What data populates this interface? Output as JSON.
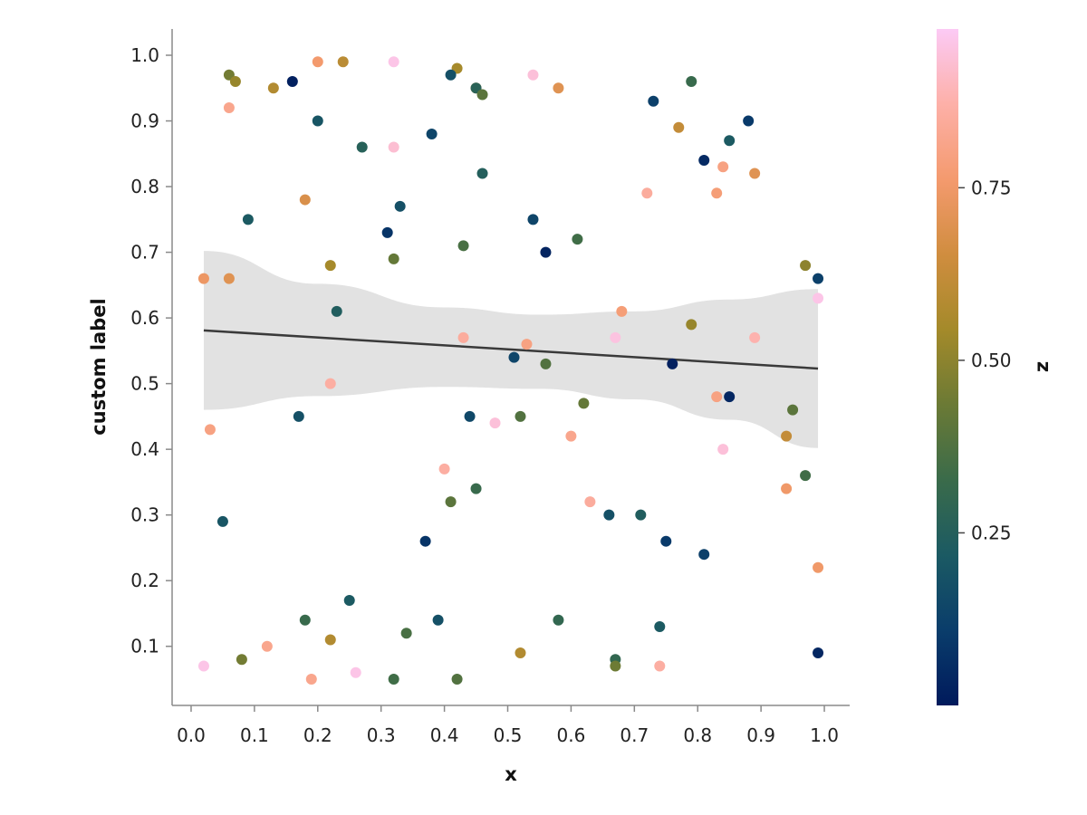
{
  "chart_data": {
    "type": "scatter",
    "xlabel": "x",
    "ylabel": "custom label",
    "xlim": [
      -0.03,
      1.04
    ],
    "ylim": [
      0.01,
      1.04
    ],
    "x_ticks": [
      "0.0",
      "0.1",
      "0.2",
      "0.3",
      "0.4",
      "0.5",
      "0.6",
      "0.7",
      "0.8",
      "0.9",
      "1.0"
    ],
    "y_ticks": [
      "0.1",
      "0.2",
      "0.3",
      "0.4",
      "0.5",
      "0.6",
      "0.7",
      "0.8",
      "0.9",
      "1.0"
    ],
    "grid": false,
    "regression": {
      "x0": 0.02,
      "y0": 0.581,
      "x1": 0.99,
      "y1": 0.523,
      "band": [
        {
          "x": 0.02,
          "lo": 0.46,
          "hi": 0.702
        },
        {
          "x": 0.2,
          "lo": 0.481,
          "hi": 0.652
        },
        {
          "x": 0.4,
          "lo": 0.495,
          "hi": 0.616
        },
        {
          "x": 0.55,
          "lo": 0.492,
          "hi": 0.605
        },
        {
          "x": 0.7,
          "lo": 0.476,
          "hi": 0.61
        },
        {
          "x": 0.85,
          "lo": 0.445,
          "hi": 0.628
        },
        {
          "x": 0.99,
          "lo": 0.402,
          "hi": 0.644
        }
      ],
      "line_color": "#3a3a3a",
      "band_color": "#e2e2e2"
    },
    "colorbar": {
      "label": "z",
      "ticks": [
        "0.25",
        "0.50",
        "0.75"
      ],
      "tick_values": [
        0.25,
        0.5,
        0.75
      ],
      "zlim": [
        0.0,
        0.98
      ],
      "colors": [
        "#001a5c",
        "#0a3d6b",
        "#1b5a63",
        "#3a6b4a",
        "#6b7a35",
        "#a48a2a",
        "#d08d3f",
        "#f49a6e",
        "#fdb0a8",
        "#fccaf5"
      ]
    },
    "points": [
      {
        "x": 0.06,
        "y": 0.97,
        "z": 0.45
      },
      {
        "x": 0.07,
        "y": 0.96,
        "z": 0.52
      },
      {
        "x": 0.06,
        "y": 0.92,
        "z": 0.82
      },
      {
        "x": 0.13,
        "y": 0.95,
        "z": 0.58
      },
      {
        "x": 0.16,
        "y": 0.96,
        "z": 0.02
      },
      {
        "x": 0.2,
        "y": 0.99,
        "z": 0.76
      },
      {
        "x": 0.24,
        "y": 0.99,
        "z": 0.6
      },
      {
        "x": 0.32,
        "y": 0.99,
        "z": 0.96
      },
      {
        "x": 0.2,
        "y": 0.9,
        "z": 0.2
      },
      {
        "x": 0.27,
        "y": 0.86,
        "z": 0.26
      },
      {
        "x": 0.32,
        "y": 0.86,
        "z": 0.93
      },
      {
        "x": 0.38,
        "y": 0.88,
        "z": 0.14
      },
      {
        "x": 0.42,
        "y": 0.98,
        "z": 0.55
      },
      {
        "x": 0.41,
        "y": 0.97,
        "z": 0.18
      },
      {
        "x": 0.45,
        "y": 0.95,
        "z": 0.66
      },
      {
        "x": 0.45,
        "y": 0.95,
        "z": 0.27
      },
      {
        "x": 0.46,
        "y": 0.94,
        "z": 0.4
      },
      {
        "x": 0.54,
        "y": 0.97,
        "z": 0.94
      },
      {
        "x": 0.58,
        "y": 0.95,
        "z": 0.7
      },
      {
        "x": 0.73,
        "y": 0.93,
        "z": 0.12
      },
      {
        "x": 0.79,
        "y": 0.96,
        "z": 0.32
      },
      {
        "x": 0.77,
        "y": 0.89,
        "z": 0.62
      },
      {
        "x": 0.85,
        "y": 0.87,
        "z": 0.22
      },
      {
        "x": 0.88,
        "y": 0.9,
        "z": 0.1
      },
      {
        "x": 0.81,
        "y": 0.84,
        "z": 0.05
      },
      {
        "x": 0.84,
        "y": 0.83,
        "z": 0.8
      },
      {
        "x": 0.89,
        "y": 0.82,
        "z": 0.7
      },
      {
        "x": 0.83,
        "y": 0.79,
        "z": 0.78
      },
      {
        "x": 0.72,
        "y": 0.79,
        "z": 0.85
      },
      {
        "x": 0.46,
        "y": 0.82,
        "z": 0.25
      },
      {
        "x": 0.18,
        "y": 0.78,
        "z": 0.68
      },
      {
        "x": 0.33,
        "y": 0.77,
        "z": 0.18
      },
      {
        "x": 0.09,
        "y": 0.75,
        "z": 0.22
      },
      {
        "x": 0.54,
        "y": 0.75,
        "z": 0.14
      },
      {
        "x": 0.31,
        "y": 0.73,
        "z": 0.08
      },
      {
        "x": 0.43,
        "y": 0.71,
        "z": 0.36
      },
      {
        "x": 0.56,
        "y": 0.7,
        "z": 0.03
      },
      {
        "x": 0.61,
        "y": 0.72,
        "z": 0.34
      },
      {
        "x": 0.32,
        "y": 0.69,
        "z": 0.42
      },
      {
        "x": 0.22,
        "y": 0.68,
        "z": 0.55
      },
      {
        "x": 0.02,
        "y": 0.66,
        "z": 0.74
      },
      {
        "x": 0.06,
        "y": 0.66,
        "z": 0.7
      },
      {
        "x": 0.97,
        "y": 0.68,
        "z": 0.5
      },
      {
        "x": 0.99,
        "y": 0.66,
        "z": 0.12
      },
      {
        "x": 0.99,
        "y": 0.63,
        "z": 0.96
      },
      {
        "x": 0.23,
        "y": 0.61,
        "z": 0.24
      },
      {
        "x": 0.68,
        "y": 0.61,
        "z": 0.78
      },
      {
        "x": 0.67,
        "y": 0.57,
        "z": 0.95
      },
      {
        "x": 0.79,
        "y": 0.59,
        "z": 0.52
      },
      {
        "x": 0.89,
        "y": 0.57,
        "z": 0.88
      },
      {
        "x": 0.43,
        "y": 0.57,
        "z": 0.85
      },
      {
        "x": 0.53,
        "y": 0.56,
        "z": 0.8
      },
      {
        "x": 0.51,
        "y": 0.54,
        "z": 0.14
      },
      {
        "x": 0.56,
        "y": 0.53,
        "z": 0.38
      },
      {
        "x": 0.76,
        "y": 0.53,
        "z": 0.02
      },
      {
        "x": 0.22,
        "y": 0.5,
        "z": 0.86
      },
      {
        "x": 0.83,
        "y": 0.48,
        "z": 0.8
      },
      {
        "x": 0.85,
        "y": 0.48,
        "z": 0.04
      },
      {
        "x": 0.95,
        "y": 0.46,
        "z": 0.4
      },
      {
        "x": 0.62,
        "y": 0.47,
        "z": 0.42
      },
      {
        "x": 0.44,
        "y": 0.45,
        "z": 0.15
      },
      {
        "x": 0.48,
        "y": 0.44,
        "z": 0.94
      },
      {
        "x": 0.52,
        "y": 0.45,
        "z": 0.38
      },
      {
        "x": 0.17,
        "y": 0.45,
        "z": 0.18
      },
      {
        "x": 0.03,
        "y": 0.43,
        "z": 0.8
      },
      {
        "x": 0.6,
        "y": 0.42,
        "z": 0.82
      },
      {
        "x": 0.84,
        "y": 0.4,
        "z": 0.94
      },
      {
        "x": 0.94,
        "y": 0.42,
        "z": 0.62
      },
      {
        "x": 0.4,
        "y": 0.37,
        "z": 0.86
      },
      {
        "x": 0.45,
        "y": 0.34,
        "z": 0.32
      },
      {
        "x": 0.41,
        "y": 0.32,
        "z": 0.4
      },
      {
        "x": 0.63,
        "y": 0.32,
        "z": 0.85
      },
      {
        "x": 0.97,
        "y": 0.36,
        "z": 0.34
      },
      {
        "x": 0.94,
        "y": 0.34,
        "z": 0.75
      },
      {
        "x": 0.66,
        "y": 0.3,
        "z": 0.18
      },
      {
        "x": 0.71,
        "y": 0.3,
        "z": 0.24
      },
      {
        "x": 0.05,
        "y": 0.29,
        "z": 0.2
      },
      {
        "x": 0.37,
        "y": 0.26,
        "z": 0.08
      },
      {
        "x": 0.75,
        "y": 0.26,
        "z": 0.1
      },
      {
        "x": 0.81,
        "y": 0.24,
        "z": 0.12
      },
      {
        "x": 0.99,
        "y": 0.22,
        "z": 0.75
      },
      {
        "x": 0.25,
        "y": 0.17,
        "z": 0.22
      },
      {
        "x": 0.18,
        "y": 0.14,
        "z": 0.32
      },
      {
        "x": 0.58,
        "y": 0.14,
        "z": 0.3
      },
      {
        "x": 0.39,
        "y": 0.14,
        "z": 0.18
      },
      {
        "x": 0.34,
        "y": 0.12,
        "z": 0.36
      },
      {
        "x": 0.74,
        "y": 0.13,
        "z": 0.22
      },
      {
        "x": 0.22,
        "y": 0.11,
        "z": 0.58
      },
      {
        "x": 0.12,
        "y": 0.1,
        "z": 0.82
      },
      {
        "x": 0.52,
        "y": 0.09,
        "z": 0.58
      },
      {
        "x": 0.08,
        "y": 0.08,
        "z": 0.45
      },
      {
        "x": 0.67,
        "y": 0.08,
        "z": 0.3
      },
      {
        "x": 0.67,
        "y": 0.07,
        "z": 0.44
      },
      {
        "x": 0.99,
        "y": 0.09,
        "z": 0.04
      },
      {
        "x": 0.02,
        "y": 0.07,
        "z": 0.96
      },
      {
        "x": 0.74,
        "y": 0.07,
        "z": 0.86
      },
      {
        "x": 0.26,
        "y": 0.06,
        "z": 0.96
      },
      {
        "x": 0.19,
        "y": 0.05,
        "z": 0.82
      },
      {
        "x": 0.32,
        "y": 0.05,
        "z": 0.34
      },
      {
        "x": 0.42,
        "y": 0.05,
        "z": 0.38
      }
    ]
  }
}
